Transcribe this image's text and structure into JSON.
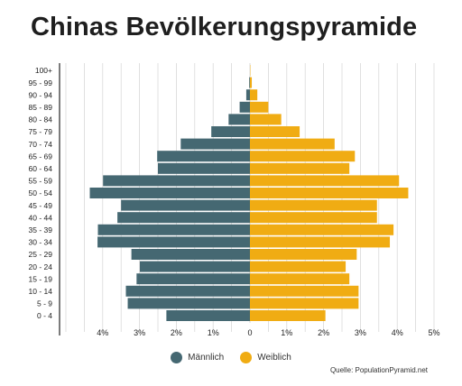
{
  "colors": {
    "male": "#456872",
    "female": "#F0AC13",
    "grid": "#d9d9d9",
    "axis": "#444444"
  },
  "source": "Quelle: PopulationPyramid.net",
  "chart_data": {
    "type": "bar",
    "orientation": "horizontal-population-pyramid",
    "title": "Chinas Bevölkerungspyramide",
    "categories": [
      "100+",
      "95 - 99",
      "90 - 94",
      "85 - 89",
      "80 - 84",
      "75 - 79",
      "70 - 74",
      "65 - 69",
      "60 - 64",
      "55 - 59",
      "50 - 54",
      "45 - 49",
      "40 - 44",
      "35 - 39",
      "30 - 34",
      "25 - 29",
      "20 - 24",
      "15 - 19",
      "10 - 14",
      "5 - 9",
      "0 - 4"
    ],
    "series": [
      {
        "name": "Männlich",
        "color": "#456872",
        "values": [
          0.0,
          0.02,
          0.1,
          0.28,
          0.58,
          1.05,
          1.88,
          2.52,
          2.5,
          3.99,
          4.35,
          3.5,
          3.6,
          4.13,
          4.14,
          3.22,
          2.99,
          3.08,
          3.37,
          3.32,
          2.27
        ]
      },
      {
        "name": "Weiblich",
        "color": "#F0AC13",
        "values": [
          0.01,
          0.05,
          0.2,
          0.5,
          0.85,
          1.35,
          2.3,
          2.85,
          2.7,
          4.05,
          4.3,
          3.45,
          3.45,
          3.9,
          3.8,
          2.9,
          2.6,
          2.7,
          2.95,
          2.95,
          2.05
        ]
      }
    ],
    "xtick_labels": [
      "4%",
      "3%",
      "2%",
      "1%",
      "0",
      "1%",
      "2%",
      "3%",
      "4%",
      "5%"
    ],
    "xtick_values": [
      -4,
      -3,
      -2,
      -1,
      0,
      1,
      2,
      3,
      4,
      5
    ],
    "xlim": [
      -5.2,
      5.0
    ],
    "xlabel": "",
    "ylabel": "",
    "grid": true,
    "legend": "bottom-center"
  }
}
